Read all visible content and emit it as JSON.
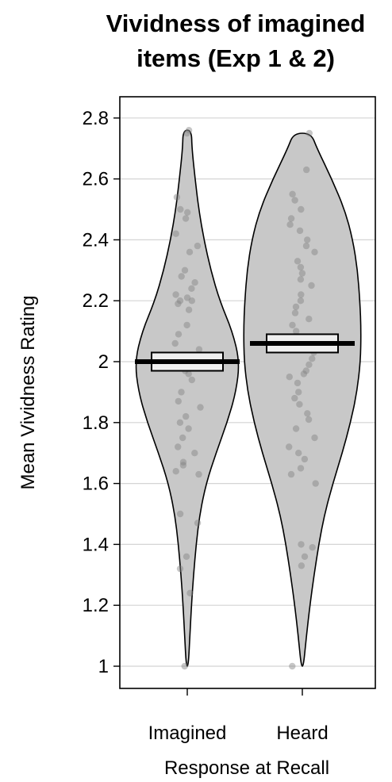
{
  "chart_data": {
    "type": "violin",
    "title": [
      "Vividness of imagined",
      "items (Exp 1 & 2)"
    ],
    "xlabel": "Response at Recall",
    "ylabel": "Mean Vividness Rating",
    "ylim": [
      0.96,
      2.84
    ],
    "yticks": [
      1,
      1.2,
      1.4,
      1.6,
      1.8,
      2,
      2.2,
      2.4,
      2.6,
      2.8
    ],
    "ytick_labels": [
      "1",
      "1.2",
      "1.4",
      "1.6",
      "1.8",
      "2",
      "2.2",
      "2.4",
      "2.6",
      "2.8"
    ],
    "grid": true,
    "categories": [
      "Imagined",
      "Heard"
    ],
    "series": [
      {
        "category": "Imagined",
        "mean": 2.0,
        "ci": [
          1.97,
          2.03
        ],
        "max": 2.76,
        "min": 1.0,
        "violin_profile": [
          [
            1.0,
            0.02
          ],
          [
            1.1,
            0.05
          ],
          [
            1.2,
            0.08
          ],
          [
            1.3,
            0.12
          ],
          [
            1.4,
            0.17
          ],
          [
            1.5,
            0.24
          ],
          [
            1.6,
            0.36
          ],
          [
            1.7,
            0.55
          ],
          [
            1.8,
            0.76
          ],
          [
            1.9,
            0.93
          ],
          [
            2.0,
            1.0
          ],
          [
            2.1,
            0.86
          ],
          [
            2.2,
            0.62
          ],
          [
            2.3,
            0.45
          ],
          [
            2.4,
            0.32
          ],
          [
            2.5,
            0.22
          ],
          [
            2.6,
            0.15
          ],
          [
            2.7,
            0.09
          ],
          [
            2.76,
            0.08
          ]
        ],
        "points": [
          2.75,
          2.76,
          2.54,
          2.5,
          2.47,
          2.49,
          2.42,
          2.38,
          2.36,
          2.3,
          2.28,
          2.26,
          2.24,
          2.22,
          2.21,
          2.2,
          2.2,
          2.19,
          2.17,
          2.12,
          2.09,
          2.06,
          2.04,
          2.02,
          2.01,
          2.0,
          1.99,
          1.98,
          1.97,
          1.96,
          1.94,
          1.9,
          1.87,
          1.85,
          1.82,
          1.8,
          1.78,
          1.75,
          1.72,
          1.7,
          1.67,
          1.66,
          1.64,
          1.63,
          1.5,
          1.47,
          1.36,
          1.32,
          1.24,
          1.0
        ]
      },
      {
        "category": "Heard",
        "mean": 2.06,
        "ci": [
          2.03,
          2.09
        ],
        "max": 2.75,
        "min": 1.0,
        "violin_profile": [
          [
            1.0,
            0.02
          ],
          [
            1.1,
            0.07
          ],
          [
            1.2,
            0.13
          ],
          [
            1.3,
            0.2
          ],
          [
            1.4,
            0.28
          ],
          [
            1.5,
            0.38
          ],
          [
            1.6,
            0.52
          ],
          [
            1.7,
            0.68
          ],
          [
            1.8,
            0.82
          ],
          [
            1.9,
            0.93
          ],
          [
            2.0,
            0.99
          ],
          [
            2.1,
            1.0
          ],
          [
            2.2,
            0.98
          ],
          [
            2.3,
            0.94
          ],
          [
            2.4,
            0.86
          ],
          [
            2.5,
            0.72
          ],
          [
            2.6,
            0.5
          ],
          [
            2.7,
            0.25
          ],
          [
            2.75,
            0.15
          ]
        ],
        "points": [
          2.75,
          2.63,
          2.55,
          2.53,
          2.5,
          2.47,
          2.45,
          2.43,
          2.4,
          2.38,
          2.36,
          2.33,
          2.31,
          2.29,
          2.27,
          2.25,
          2.22,
          2.2,
          2.18,
          2.16,
          2.14,
          2.12,
          2.1,
          2.08,
          2.07,
          2.05,
          2.03,
          2.01,
          1.99,
          1.97,
          1.96,
          1.95,
          1.93,
          1.9,
          1.88,
          1.86,
          1.83,
          1.81,
          1.78,
          1.75,
          1.72,
          1.7,
          1.68,
          1.65,
          1.63,
          1.6,
          1.4,
          1.39,
          1.36,
          1.33,
          1.0
        ]
      }
    ],
    "colors": {
      "violin_fill": "#c8c8c8",
      "violin_stroke": "#000000",
      "point_fill": "#808080",
      "ci_fill": "#efefef",
      "mean_line": "#000000",
      "grid": "#d4d4d4"
    }
  }
}
